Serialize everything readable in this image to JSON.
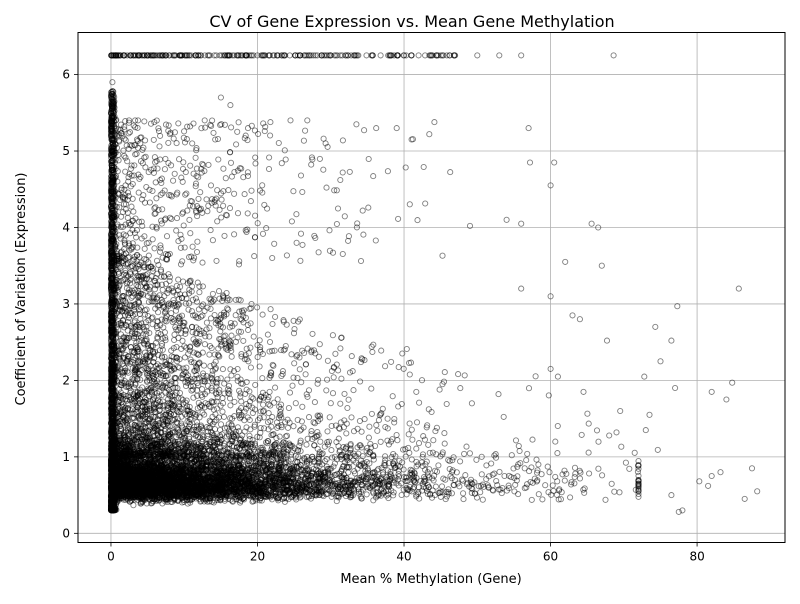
{
  "chart_data": {
    "type": "scatter",
    "title": "CV of Gene Expression vs. Mean Gene Methylation",
    "xlabel": "Mean % Methylation (Gene)",
    "ylabel": "Coefficient of Variation (Expression)",
    "xlim": [
      -4.5,
      92
    ],
    "ylim": [
      -0.12,
      6.55
    ],
    "xticks": [
      0,
      20,
      40,
      60,
      80
    ],
    "yticks": [
      0,
      1,
      2,
      3,
      4,
      5,
      6
    ],
    "grid": true,
    "legend": "none",
    "marker": "open circle",
    "marker_edge_color": "#000000",
    "marker_alpha": 0.5,
    "approx_point_count": 12000,
    "cap_value": 6.25,
    "density_description": "Dense band of points at CV 0.3–1.2 across methylation 0–55%, heaviest near 0–20%; a vertical wall of points at methylation ≈0 spanning CV 0.3–5.9; a capped row at CV ≈6.25 for methylation 0–60; sparse high-CV scatter thinning toward 88%.",
    "sample_points": [
      [
        0.2,
        5.9
      ],
      [
        0.3,
        5.7
      ],
      [
        0.5,
        5.45
      ],
      [
        0.8,
        5.2
      ],
      [
        1.0,
        4.95
      ],
      [
        3.3,
        5.4
      ],
      [
        3.7,
        5.4
      ],
      [
        4.0,
        5.1
      ],
      [
        12.8,
        5.4
      ],
      [
        15.0,
        5.7
      ],
      [
        16.3,
        5.6
      ],
      [
        18.7,
        5.3
      ],
      [
        24.5,
        5.4
      ],
      [
        26.8,
        5.4
      ],
      [
        29.3,
        5.1
      ],
      [
        33.5,
        5.35
      ],
      [
        36.2,
        5.3
      ],
      [
        39.0,
        5.3
      ],
      [
        57.0,
        5.3
      ],
      [
        57.2,
        4.85
      ],
      [
        60.5,
        4.85
      ],
      [
        60.0,
        4.55
      ],
      [
        65.6,
        4.05
      ],
      [
        66.5,
        4.0
      ],
      [
        56.0,
        4.05
      ],
      [
        62.0,
        3.55
      ],
      [
        67.0,
        3.5
      ],
      [
        49.0,
        4.02
      ],
      [
        54.0,
        4.1
      ],
      [
        85.7,
        3.2
      ],
      [
        77.3,
        2.97
      ],
      [
        74.3,
        2.7
      ],
      [
        76.5,
        2.52
      ],
      [
        67.7,
        2.52
      ],
      [
        63.0,
        2.85
      ],
      [
        64.0,
        2.8
      ],
      [
        60.0,
        3.1
      ],
      [
        56.0,
        3.2
      ],
      [
        84.0,
        1.75
      ],
      [
        84.8,
        1.97
      ],
      [
        82.0,
        1.85
      ],
      [
        77.0,
        1.9
      ],
      [
        75.0,
        2.25
      ],
      [
        72.8,
        2.05
      ],
      [
        64.5,
        1.85
      ],
      [
        60.0,
        2.15
      ],
      [
        61.0,
        2.05
      ],
      [
        87.5,
        0.85
      ],
      [
        88.2,
        0.55
      ],
      [
        86.5,
        0.45
      ],
      [
        83.2,
        0.8
      ],
      [
        82.0,
        0.75
      ],
      [
        81.5,
        0.62
      ],
      [
        80.3,
        0.68
      ],
      [
        78.0,
        0.3
      ],
      [
        77.5,
        0.28
      ],
      [
        76.5,
        0.5
      ],
      [
        73.5,
        1.55
      ],
      [
        73.0,
        1.35
      ],
      [
        69.5,
        1.6
      ],
      [
        68.0,
        1.28
      ],
      [
        69.0,
        1.32
      ]
    ]
  }
}
